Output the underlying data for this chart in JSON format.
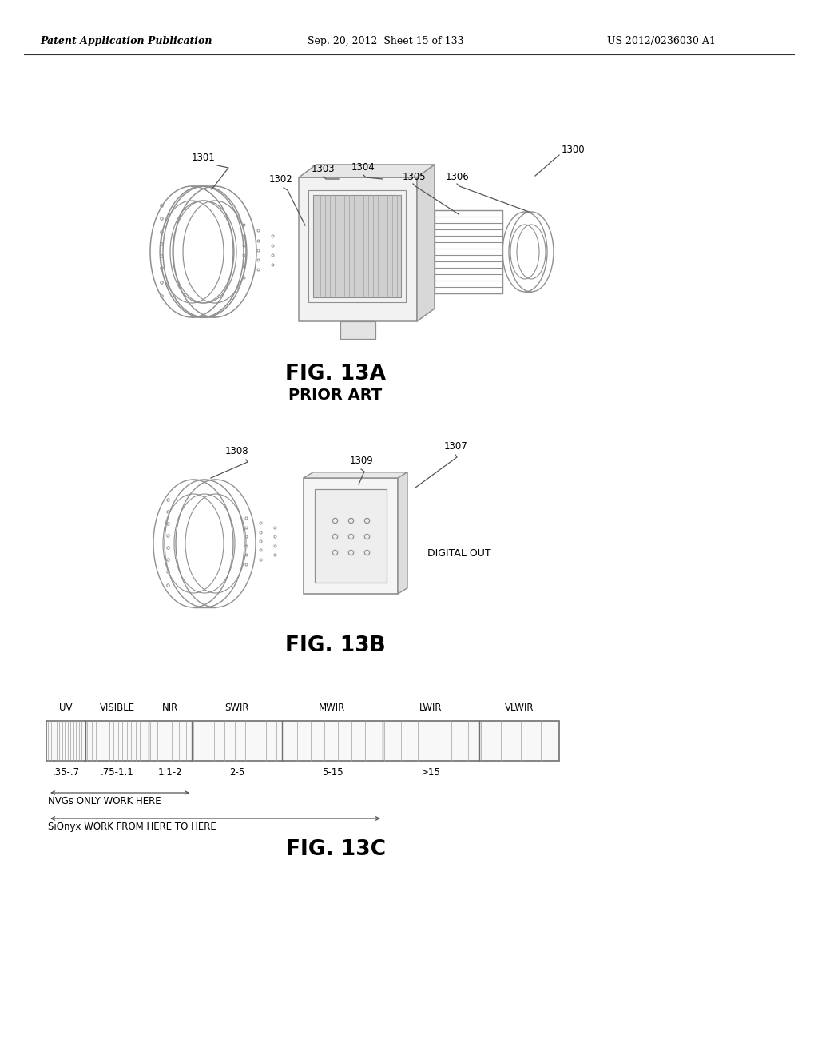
{
  "header_left": "Patent Application Publication",
  "header_mid": "Sep. 20, 2012  Sheet 15 of 133",
  "header_right": "US 2012/0236030 A1",
  "fig13a_title": "FIG. 13A",
  "fig13a_subtitle": "PRIOR ART",
  "fig13b_title": "FIG. 13B",
  "fig13c_title": "FIG. 13C",
  "label_1300": "1300",
  "label_1301": "1301",
  "label_1302": "1302",
  "label_1303": "1303",
  "label_1304": "1304",
  "label_1305": "1305",
  "label_1306": "1306",
  "label_1307": "1307",
  "label_1308": "1308",
  "label_1309": "1309",
  "digital_out": "DIGITAL OUT",
  "spectrum_labels": [
    "UV",
    "VISIBLE",
    "NIR",
    "SWIR",
    "MWIR",
    "LWIR",
    "VLWIR"
  ],
  "spectrum_ranges": [
    ".35-.7",
    ".75-1.1",
    "1.1-2",
    "2-5",
    "5-15",
    ">15"
  ],
  "nvg_label": "NVGs ONLY WORK HERE",
  "sionyx_label": "SiOnyx WORK FROM HERE TO HERE",
  "bg_color": "#ffffff",
  "line_color": "#909090",
  "dark_color": "#555555",
  "text_color": "#000000"
}
